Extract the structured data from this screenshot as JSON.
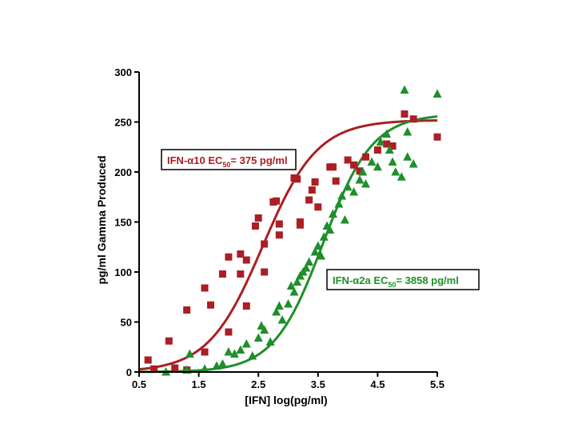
{
  "chart_data": {
    "type": "scatter",
    "xlabel": "[IFN] log(pg/ml)",
    "ylabel": "pg/ml Gamma Produced",
    "xlim": [
      0.5,
      5.5
    ],
    "ylim": [
      0,
      300
    ],
    "xticks": [
      0.5,
      1.5,
      2.5,
      3.5,
      4.5,
      5.5
    ],
    "xtick_labels": [
      "0.5",
      "1.5",
      "2.5",
      "3.5",
      "4.5",
      "5.5"
    ],
    "yticks": [
      0,
      50,
      100,
      150,
      200,
      250,
      300
    ],
    "ytick_labels": [
      "0",
      "50",
      "100",
      "150",
      "200",
      "250",
      "300"
    ],
    "grid": false,
    "legend": "none",
    "series": [
      {
        "marker": "square",
        "color": "#aa1f24",
        "points": [
          [
            0.65,
            12
          ],
          [
            0.75,
            3
          ],
          [
            1.0,
            31
          ],
          [
            1.1,
            4
          ],
          [
            1.3,
            62
          ],
          [
            1.3,
            2
          ],
          [
            1.6,
            84
          ],
          [
            1.6,
            20
          ],
          [
            1.7,
            67
          ],
          [
            1.9,
            98
          ],
          [
            2.0,
            115
          ],
          [
            2.0,
            40
          ],
          [
            2.2,
            118
          ],
          [
            2.2,
            98
          ],
          [
            2.3,
            112
          ],
          [
            2.3,
            66
          ],
          [
            2.45,
            146
          ],
          [
            2.5,
            154
          ],
          [
            2.6,
            128
          ],
          [
            2.6,
            100
          ],
          [
            2.75,
            170
          ],
          [
            2.8,
            171
          ],
          [
            2.85,
            148
          ],
          [
            2.85,
            137
          ],
          [
            3.1,
            194
          ],
          [
            3.15,
            193
          ],
          [
            3.2,
            147
          ],
          [
            3.2,
            150
          ],
          [
            3.35,
            172
          ],
          [
            3.4,
            182
          ],
          [
            3.45,
            190
          ],
          [
            3.5,
            165
          ],
          [
            3.7,
            205
          ],
          [
            3.75,
            205
          ],
          [
            3.8,
            191
          ],
          [
            4.0,
            212
          ],
          [
            4.1,
            207
          ],
          [
            4.2,
            201
          ],
          [
            4.3,
            215
          ],
          [
            4.5,
            222
          ],
          [
            4.65,
            228
          ],
          [
            4.75,
            226
          ],
          [
            4.95,
            258
          ],
          [
            5.1,
            253
          ],
          [
            5.5,
            235
          ]
        ]
      },
      {
        "marker": "triangle",
        "color": "#1e8f2a",
        "points": [
          [
            0.95,
            0
          ],
          [
            1.3,
            2
          ],
          [
            1.35,
            18
          ],
          [
            1.6,
            3
          ],
          [
            1.8,
            6
          ],
          [
            1.9,
            8
          ],
          [
            2.0,
            20
          ],
          [
            2.1,
            18
          ],
          [
            2.2,
            22
          ],
          [
            2.3,
            28
          ],
          [
            2.4,
            16
          ],
          [
            2.5,
            34
          ],
          [
            2.55,
            46
          ],
          [
            2.6,
            42
          ],
          [
            2.7,
            30
          ],
          [
            2.8,
            60
          ],
          [
            2.85,
            66
          ],
          [
            2.9,
            52
          ],
          [
            3.0,
            68
          ],
          [
            3.05,
            86
          ],
          [
            3.1,
            80
          ],
          [
            3.15,
            90
          ],
          [
            3.2,
            96
          ],
          [
            3.25,
            100
          ],
          [
            3.3,
            104
          ],
          [
            3.35,
            110
          ],
          [
            3.45,
            120
          ],
          [
            3.5,
            126
          ],
          [
            3.55,
            116
          ],
          [
            3.6,
            135
          ],
          [
            3.65,
            146
          ],
          [
            3.7,
            142
          ],
          [
            3.75,
            158
          ],
          [
            3.85,
            168
          ],
          [
            3.9,
            176
          ],
          [
            3.95,
            152
          ],
          [
            4.0,
            185
          ],
          [
            4.1,
            180
          ],
          [
            4.2,
            192
          ],
          [
            4.25,
            200
          ],
          [
            4.3,
            188
          ],
          [
            4.4,
            210
          ],
          [
            4.5,
            205
          ],
          [
            4.55,
            230
          ],
          [
            4.65,
            238
          ],
          [
            4.7,
            222
          ],
          [
            4.75,
            210
          ],
          [
            4.8,
            200
          ],
          [
            4.9,
            195
          ],
          [
            4.95,
            282
          ],
          [
            5.0,
            215
          ],
          [
            5.0,
            240
          ],
          [
            5.1,
            208
          ],
          [
            5.5,
            278
          ]
        ]
      }
    ],
    "curves": [
      {
        "color": "#aa1f24",
        "top": 252,
        "logEC50": 2.574,
        "slope": 0.95
      },
      {
        "color": "#1e8f2a",
        "top": 258,
        "logEC50": 3.586,
        "slope": 1.05
      }
    ],
    "annotations": [
      {
        "id": "ifn-alpha10",
        "color": "#aa1f24",
        "prefix": "IFN-α10 EC",
        "sub": "50",
        "suffix": "= 375 pg/ml"
      },
      {
        "id": "ifn-alpha2a",
        "color": "#1e8f2a",
        "prefix": "IFN-α2a EC",
        "sub": "50",
        "suffix": "= 3858 pg/ml"
      }
    ]
  }
}
